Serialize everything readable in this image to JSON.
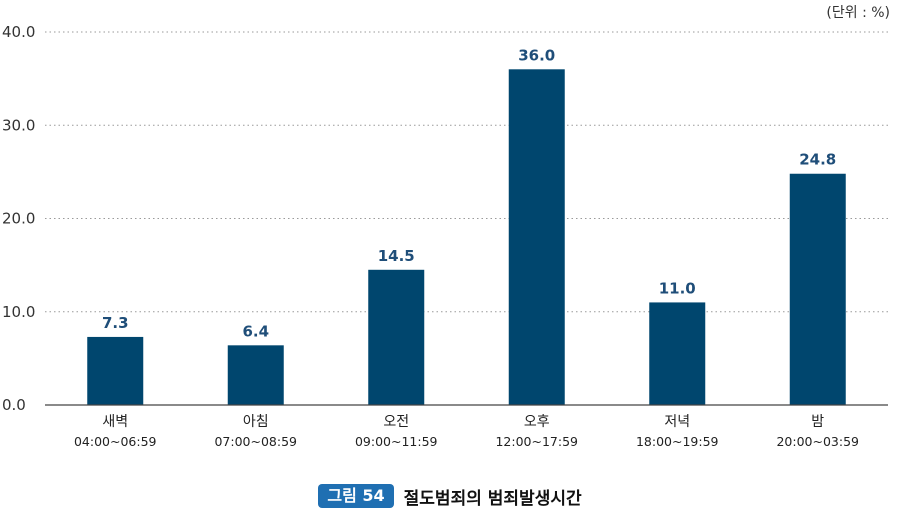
{
  "unit_label": "(단위 : %)",
  "caption": {
    "number": "그림 54",
    "title": "절도범죄의 범죄발생시간"
  },
  "colors": {
    "bar": "#00466e",
    "label": "#1f4e79",
    "grid": "#9a9a9a",
    "axis": "#444444"
  },
  "chart_data": {
    "type": "bar",
    "categories": [
      {
        "name": "새벽",
        "range": "04:00~06:59"
      },
      {
        "name": "아침",
        "range": "07:00~08:59"
      },
      {
        "name": "오전",
        "range": "09:00~11:59"
      },
      {
        "name": "오후",
        "range": "12:00~17:59"
      },
      {
        "name": "저녁",
        "range": "18:00~19:59"
      },
      {
        "name": "밤",
        "range": "20:00~03:59"
      }
    ],
    "values": [
      7.3,
      6.4,
      14.5,
      36.0,
      11.0,
      24.8
    ],
    "data_labels": [
      "7.3",
      "6.4",
      "14.5",
      "36.0",
      "11.0",
      "24.8"
    ],
    "ylim": [
      0,
      40
    ],
    "yticks": [
      "0.0",
      "10.0",
      "20.0",
      "30.0",
      "40.0"
    ],
    "ytick_values": [
      0,
      10,
      20,
      30,
      40
    ],
    "grid": true,
    "title": "",
    "xlabel": "",
    "ylabel": ""
  }
}
